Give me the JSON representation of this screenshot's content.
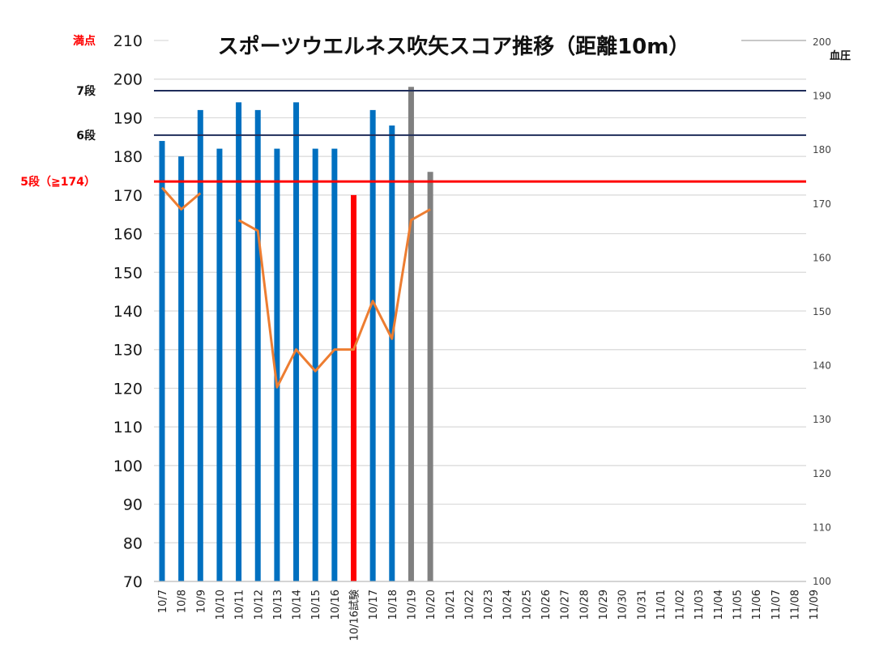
{
  "chart_data": {
    "type": "bar",
    "title": "スポーツウエルネス吹矢スコア推移（距離10m）",
    "ylim": [
      70,
      210
    ],
    "yticks": [
      70,
      80,
      90,
      100,
      110,
      120,
      130,
      140,
      150,
      160,
      170,
      180,
      190,
      200,
      210
    ],
    "top_tick_label": "満点",
    "y2label": "血圧",
    "y2lim": [
      100,
      200
    ],
    "y2ticks": [
      100,
      110,
      120,
      130,
      140,
      150,
      160,
      170,
      180,
      190,
      200
    ],
    "grid": true,
    "categories": [
      "10/7",
      "10/8",
      "10/9",
      "10/10",
      "10/11",
      "10/12",
      "10/13",
      "10/14",
      "10/15",
      "10/16",
      "10/16試験",
      "10/17",
      "10/18",
      "10/19",
      "10/20",
      "10/21",
      "10/22",
      "10/23",
      "10/24",
      "10/25",
      "10/26",
      "10/27",
      "10/28",
      "10/29",
      "10/30",
      "10/31",
      "11/01",
      "11/02",
      "11/03",
      "11/04",
      "11/05",
      "11/06",
      "11/07",
      "11/08",
      "11/09"
    ],
    "bars": [
      {
        "category": "10/7",
        "value": 184,
        "color": "#0070c0"
      },
      {
        "category": "10/8",
        "value": 180,
        "color": "#0070c0"
      },
      {
        "category": "10/9",
        "value": 192,
        "color": "#0070c0"
      },
      {
        "category": "10/10",
        "value": 182,
        "color": "#0070c0"
      },
      {
        "category": "10/11",
        "value": 194,
        "color": "#0070c0"
      },
      {
        "category": "10/12",
        "value": 192,
        "color": "#0070c0"
      },
      {
        "category": "10/13",
        "value": 182,
        "color": "#0070c0"
      },
      {
        "category": "10/14",
        "value": 194,
        "color": "#0070c0"
      },
      {
        "category": "10/15",
        "value": 182,
        "color": "#0070c0"
      },
      {
        "category": "10/16",
        "value": 182,
        "color": "#0070c0"
      },
      {
        "category": "10/16試験",
        "value": 170,
        "color": "#ff0000"
      },
      {
        "category": "10/17",
        "value": 192,
        "color": "#0070c0"
      },
      {
        "category": "10/18",
        "value": 188,
        "color": "#0070c0"
      },
      {
        "category": "10/19",
        "value": 198,
        "color": "#808080"
      },
      {
        "category": "10/20",
        "value": 176,
        "color": "#808080"
      }
    ],
    "blood_pressure_segments": [
      [
        [
          "10/7",
          173
        ],
        [
          "10/8",
          169
        ],
        [
          "10/9",
          172
        ]
      ],
      [
        [
          "10/11",
          167
        ],
        [
          "10/12",
          165
        ],
        [
          "10/13",
          136
        ],
        [
          "10/14",
          143
        ],
        [
          "10/15",
          139
        ],
        [
          "10/16",
          143
        ],
        [
          "10/16試験",
          143
        ],
        [
          "10/17",
          152
        ],
        [
          "10/18",
          145
        ],
        [
          "10/19",
          167
        ],
        [
          "10/20",
          169
        ]
      ]
    ],
    "reference_lines": [
      {
        "label": "7段",
        "value": 197,
        "color": "#1f2d5a"
      },
      {
        "label": "6段",
        "value": 185.5,
        "color": "#1f2d5a"
      },
      {
        "label": "5段（≧174）",
        "value": 173.5,
        "color": "#ff0000"
      }
    ],
    "colors": {
      "blue_bar": "#0070c0",
      "exam_bar": "#ff0000",
      "gray_bar": "#808080",
      "bp_line": "#ed7d31",
      "gridline": "#d9d9d9"
    }
  }
}
